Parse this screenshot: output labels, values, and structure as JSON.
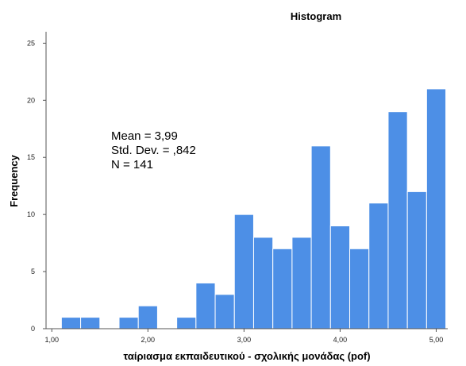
{
  "chart_data": {
    "type": "bar",
    "title": "Histogram",
    "xlabel": "ταίριασμα εκπαιδευτικού - σχολικής μονάδας (pof)",
    "ylabel": "Frequency",
    "xlim": [
      0.94,
      5.12
    ],
    "ylim": [
      0,
      26
    ],
    "bin_width": 0.2,
    "x_ticks": [
      1.0,
      2.0,
      3.0,
      4.0,
      5.0
    ],
    "x_tick_labels": [
      "1,00",
      "2,00",
      "3,00",
      "4,00",
      "5,00"
    ],
    "y_ticks": [
      0,
      5,
      10,
      15,
      20,
      25
    ],
    "y_tick_labels": [
      "0",
      "5",
      "10",
      "15",
      "20",
      "25"
    ],
    "bins": [
      {
        "start": 1.1,
        "value": 1
      },
      {
        "start": 1.3,
        "value": 1
      },
      {
        "start": 1.5,
        "value": 0
      },
      {
        "start": 1.7,
        "value": 1
      },
      {
        "start": 1.9,
        "value": 2
      },
      {
        "start": 2.1,
        "value": 0
      },
      {
        "start": 2.3,
        "value": 1
      },
      {
        "start": 2.5,
        "value": 4
      },
      {
        "start": 2.7,
        "value": 3
      },
      {
        "start": 2.9,
        "value": 10
      },
      {
        "start": 3.1,
        "value": 8
      },
      {
        "start": 3.3,
        "value": 7
      },
      {
        "start": 3.5,
        "value": 8
      },
      {
        "start": 3.7,
        "value": 16
      },
      {
        "start": 3.9,
        "value": 9
      },
      {
        "start": 4.1,
        "value": 7
      },
      {
        "start": 4.3,
        "value": 11
      },
      {
        "start": 4.5,
        "value": 19
      },
      {
        "start": 4.7,
        "value": 12
      },
      {
        "start": 4.9,
        "value": 21
      }
    ],
    "stats": {
      "mean_label": "Mean = 3,99",
      "sd_label": "Std. Dev. = ,842",
      "n_label": "N = 141"
    },
    "bar_color": "#4d8fe6",
    "bar_edge_color": "#ffffff",
    "grid": false,
    "legend": "none"
  }
}
